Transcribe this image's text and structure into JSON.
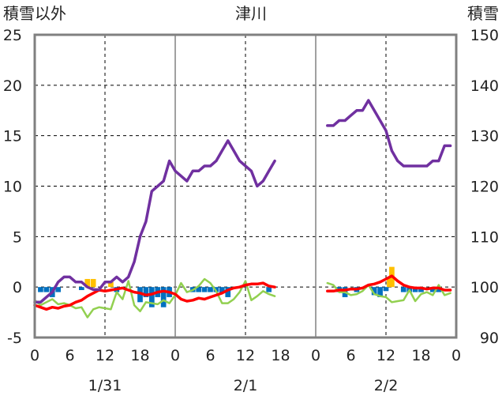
{
  "chart_data": {
    "type": "line",
    "title": "津川",
    "left_axis_label": "積雪以外",
    "right_axis_label": "積雪",
    "ylim_left": [
      -5,
      25
    ],
    "yticks_left": [
      -5,
      0,
      5,
      10,
      15,
      20,
      25
    ],
    "ylim_right": [
      90,
      150
    ],
    "yticks_right": [
      90,
      100,
      110,
      120,
      130,
      140,
      150
    ],
    "x_hour_range": [
      0,
      72
    ],
    "x_ticks": [
      {
        "hour": 0,
        "label": "0"
      },
      {
        "hour": 6,
        "label": "6"
      },
      {
        "hour": 12,
        "label": "12"
      },
      {
        "hour": 18,
        "label": "18"
      },
      {
        "hour": 24,
        "label": "0"
      },
      {
        "hour": 30,
        "label": "6"
      },
      {
        "hour": 36,
        "label": "12"
      },
      {
        "hour": 42,
        "label": "18"
      },
      {
        "hour": 48,
        "label": "0"
      },
      {
        "hour": 54,
        "label": "6"
      },
      {
        "hour": 60,
        "label": "12"
      },
      {
        "hour": 66,
        "label": "18"
      },
      {
        "hour": 72,
        "label": "0"
      }
    ],
    "date_labels": [
      {
        "hour": 12,
        "label": "1/31"
      },
      {
        "hour": 36,
        "label": "2/1"
      },
      {
        "hour": 60,
        "label": "2/2"
      }
    ],
    "day_boundaries": [
      24,
      48
    ],
    "dashed_hours": [
      12,
      36,
      60
    ],
    "grid": true,
    "colors": {
      "snow_depth": "#7030a0",
      "temperature": "#ff0000",
      "wind": "#92d050",
      "snowfall_bar": "#ffc000",
      "precip_bar": "#0070c0",
      "axis": "#808080",
      "grid": "#000000"
    },
    "series": [
      {
        "key": "snow_depth",
        "axis": "right",
        "segments": [
          [
            [
              0,
              97
            ],
            [
              1,
              97
            ],
            [
              2,
              98
            ],
            [
              3,
              99
            ],
            [
              4,
              101
            ],
            [
              5,
              102
            ],
            [
              6,
              102
            ],
            [
              7,
              101
            ],
            [
              8,
              101
            ],
            [
              9,
              100
            ],
            [
              10,
              99.5
            ],
            [
              11,
              99.5
            ],
            [
              12,
              101
            ],
            [
              13,
              101
            ],
            [
              14,
              102
            ],
            [
              15,
              101
            ],
            [
              16,
              102
            ],
            [
              17,
              105
            ],
            [
              18,
              110
            ],
            [
              19,
              113
            ],
            [
              20,
              119
            ],
            [
              21,
              120
            ],
            [
              22,
              121
            ],
            [
              23,
              125
            ],
            [
              24,
              123
            ],
            [
              25,
              122
            ],
            [
              26,
              121
            ],
            [
              27,
              123
            ],
            [
              28,
              123
            ],
            [
              29,
              124
            ],
            [
              30,
              124
            ],
            [
              31,
              125
            ],
            [
              32,
              127
            ],
            [
              33,
              129
            ],
            [
              34,
              127
            ],
            [
              35,
              125
            ],
            [
              36,
              124
            ],
            [
              37,
              123
            ],
            [
              38,
              120
            ],
            [
              39,
              121
            ],
            [
              40,
              123
            ],
            [
              41,
              125
            ]
          ],
          [
            [
              50,
              132
            ],
            [
              51,
              132
            ],
            [
              52,
              133
            ],
            [
              53,
              133
            ],
            [
              54,
              134
            ],
            [
              55,
              135
            ],
            [
              56,
              135
            ],
            [
              57,
              137
            ],
            [
              58,
              135
            ],
            [
              59,
              133
            ],
            [
              60,
              131
            ],
            [
              61,
              127
            ],
            [
              62,
              125
            ],
            [
              63,
              124
            ],
            [
              64,
              124
            ],
            [
              65,
              124
            ],
            [
              66,
              124
            ],
            [
              67,
              124
            ],
            [
              68,
              125
            ],
            [
              69,
              125
            ],
            [
              70,
              128
            ],
            [
              71,
              128
            ]
          ]
        ]
      },
      {
        "key": "temperature",
        "axis": "left",
        "segments": [
          [
            [
              0,
              -1.8
            ],
            [
              1,
              -2.0
            ],
            [
              2,
              -2.2
            ],
            [
              3,
              -2.0
            ],
            [
              4,
              -2.1
            ],
            [
              5,
              -1.9
            ],
            [
              6,
              -1.8
            ],
            [
              7,
              -1.5
            ],
            [
              8,
              -1.3
            ],
            [
              9,
              -0.9
            ],
            [
              10,
              -0.6
            ],
            [
              11,
              -0.3
            ],
            [
              12,
              -0.4
            ],
            [
              13,
              -0.3
            ],
            [
              14,
              -0.2
            ],
            [
              15,
              -0.1
            ],
            [
              16,
              -0.3
            ],
            [
              17,
              -0.5
            ],
            [
              18,
              -0.6
            ],
            [
              19,
              -0.8
            ],
            [
              20,
              -0.7
            ],
            [
              21,
              -0.5
            ],
            [
              22,
              -0.4
            ],
            [
              23,
              -0.5
            ],
            [
              24,
              -0.7
            ],
            [
              25,
              -1.2
            ],
            [
              26,
              -1.4
            ],
            [
              27,
              -1.3
            ],
            [
              28,
              -1.1
            ],
            [
              29,
              -1.2
            ],
            [
              30,
              -1.0
            ],
            [
              31,
              -0.8
            ],
            [
              32,
              -0.6
            ],
            [
              33,
              -0.3
            ],
            [
              34,
              -0.1
            ],
            [
              35,
              0.0
            ],
            [
              36,
              0.2
            ],
            [
              37,
              0.3
            ],
            [
              38,
              0.3
            ],
            [
              39,
              0.4
            ],
            [
              40,
              0.1
            ],
            [
              41,
              0.0
            ]
          ],
          [
            [
              50,
              -0.4
            ],
            [
              51,
              -0.4
            ],
            [
              52,
              -0.3
            ],
            [
              53,
              -0.3
            ],
            [
              54,
              -0.2
            ],
            [
              55,
              -0.2
            ],
            [
              56,
              -0.1
            ],
            [
              57,
              0.2
            ],
            [
              58,
              0.3
            ],
            [
              59,
              0.5
            ],
            [
              60,
              0.8
            ],
            [
              61,
              1.1
            ],
            [
              62,
              0.6
            ],
            [
              63,
              0.2
            ],
            [
              64,
              0.0
            ],
            [
              65,
              -0.1
            ],
            [
              66,
              -0.1
            ],
            [
              67,
              -0.2
            ],
            [
              68,
              -0.1
            ],
            [
              69,
              -0.1
            ],
            [
              70,
              -0.3
            ],
            [
              71,
              -0.3
            ]
          ]
        ]
      },
      {
        "key": "wind",
        "axis": "left",
        "segments": [
          [
            [
              0,
              -1.3
            ],
            [
              1,
              -1.8
            ],
            [
              2,
              -1.5
            ],
            [
              3,
              -1.2
            ],
            [
              4,
              -1.7
            ],
            [
              5,
              -1.6
            ],
            [
              6,
              -1.8
            ],
            [
              7,
              -2.1
            ],
            [
              8,
              -2.0
            ],
            [
              9,
              -3.0
            ],
            [
              10,
              -2.2
            ],
            [
              11,
              -2.0
            ],
            [
              12,
              -2.1
            ],
            [
              13,
              -2.2
            ],
            [
              14,
              -0.5
            ],
            [
              15,
              -1.2
            ],
            [
              16,
              0.6
            ],
            [
              17,
              -1.8
            ],
            [
              18,
              -2.4
            ],
            [
              19,
              -1.5
            ],
            [
              20,
              -1.6
            ],
            [
              21,
              -1.7
            ],
            [
              22,
              -1.3
            ],
            [
              23,
              -1.6
            ],
            [
              24,
              -0.8
            ],
            [
              25,
              0.4
            ],
            [
              26,
              -0.5
            ],
            [
              27,
              -0.3
            ],
            [
              28,
              0.1
            ],
            [
              29,
              0.8
            ],
            [
              30,
              0.4
            ],
            [
              31,
              -0.4
            ],
            [
              32,
              -1.6
            ],
            [
              33,
              -1.6
            ],
            [
              34,
              -1.2
            ],
            [
              35,
              -0.5
            ],
            [
              36,
              0.6
            ],
            [
              37,
              -1.3
            ],
            [
              38,
              -0.9
            ],
            [
              39,
              -0.4
            ],
            [
              40,
              -0.7
            ],
            [
              41,
              -0.9
            ]
          ],
          [
            [
              50,
              0.4
            ],
            [
              51,
              0.2
            ],
            [
              52,
              -0.5
            ],
            [
              53,
              -0.5
            ],
            [
              54,
              -0.8
            ],
            [
              55,
              -0.7
            ],
            [
              56,
              -0.4
            ],
            [
              57,
              0.2
            ],
            [
              58,
              -0.7
            ],
            [
              59,
              -0.9
            ],
            [
              60,
              -1.0
            ],
            [
              61,
              -1.5
            ],
            [
              62,
              -1.4
            ],
            [
              63,
              -1.3
            ],
            [
              64,
              -0.3
            ],
            [
              65,
              -1.4
            ],
            [
              66,
              -0.7
            ],
            [
              67,
              -0.5
            ],
            [
              68,
              -0.8
            ],
            [
              69,
              0.2
            ],
            [
              70,
              -0.8
            ],
            [
              71,
              -0.6
            ]
          ]
        ]
      }
    ],
    "bars": {
      "width_hours": 0.9,
      "snowfall": [
        [
          9,
          0.8
        ],
        [
          10,
          0.8
        ],
        [
          13,
          0.5
        ],
        [
          61,
          2.0
        ],
        [
          60.6,
          1.0
        ]
      ],
      "precip": [
        [
          1,
          -0.5
        ],
        [
          2,
          -0.5
        ],
        [
          3,
          -1.0
        ],
        [
          4,
          -0.5
        ],
        [
          8,
          -0.3
        ],
        [
          14,
          -0.5
        ],
        [
          18,
          -1.5
        ],
        [
          19,
          -1.0
        ],
        [
          20,
          -2.0
        ],
        [
          21,
          -1.0
        ],
        [
          22,
          -2.0
        ],
        [
          23,
          -1.0
        ],
        [
          27,
          -0.5
        ],
        [
          28,
          -0.5
        ],
        [
          29,
          -0.5
        ],
        [
          30,
          -0.5
        ],
        [
          31,
          -0.5
        ],
        [
          32,
          -0.6
        ],
        [
          33,
          -1.0
        ],
        [
          40,
          -0.5
        ],
        [
          52,
          -0.5
        ],
        [
          53,
          -1.0
        ],
        [
          55,
          -0.5
        ],
        [
          58,
          -0.8
        ],
        [
          59,
          -1.0
        ],
        [
          60,
          -0.4
        ],
        [
          63,
          -0.5
        ],
        [
          64,
          -0.5
        ],
        [
          65,
          -0.5
        ],
        [
          66,
          -0.5
        ],
        [
          68,
          -0.5
        ],
        [
          69,
          -0.5
        ]
      ]
    }
  }
}
